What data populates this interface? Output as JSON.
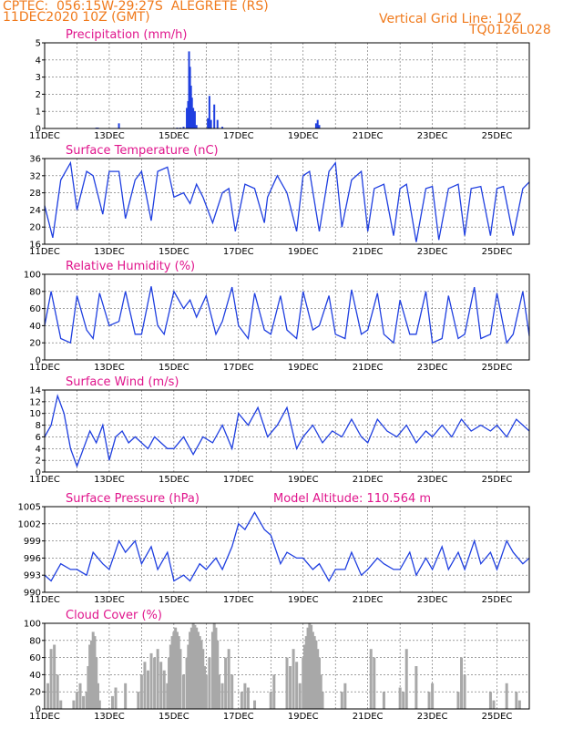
{
  "header": {
    "line1": "CPTEC:  056:15W-29:27S  ALEGRETE (RS)",
    "line2": "11DEC2020 10Z (GMT)",
    "right1": "Vertical Grid Line: 10Z",
    "right2": "TQ0126L028"
  },
  "colors": {
    "series": "#1f3fe0",
    "cloud": "#a8a8a8",
    "title": "#e0158c",
    "header": "#f07a1c"
  },
  "x_tick_labels": [
    "11DEC",
    "13DEC",
    "15DEC",
    "17DEC",
    "19DEC",
    "21DEC",
    "23DEC",
    "25DEC"
  ],
  "chart_data": [
    {
      "type": "bar",
      "title": "Precipitation (mm/h)",
      "ylim": [
        0,
        5
      ],
      "yticks": [
        0,
        1,
        2,
        3,
        4,
        5
      ],
      "x_days": [
        1.6,
        1.65,
        2.3,
        4.1,
        4.2,
        4.3,
        4.4,
        4.42,
        4.44,
        4.47,
        4.5,
        4.53,
        4.56,
        4.6,
        4.65,
        4.7,
        5.05,
        5.1,
        5.15,
        5.25,
        5.35,
        5.5,
        8.4,
        8.45,
        8.5
      ],
      "values": [
        0.05,
        0.05,
        0.3,
        0.05,
        0.05,
        0.1,
        1.2,
        1.0,
        1.6,
        4.5,
        3.6,
        2.5,
        1.8,
        1.2,
        1.0,
        0.2,
        0.6,
        1.9,
        0.5,
        1.4,
        0.5,
        0.1,
        0.3,
        0.5,
        0.2
      ]
    },
    {
      "type": "line",
      "title": "Surface Temperature (nC)",
      "ylim": [
        16,
        36
      ],
      "yticks": [
        16,
        20,
        24,
        28,
        32,
        36
      ],
      "x_days": [
        0,
        0.25,
        0.5,
        0.8,
        1.0,
        1.3,
        1.5,
        1.8,
        2.0,
        2.3,
        2.5,
        2.8,
        3.0,
        3.3,
        3.5,
        3.8,
        4.0,
        4.3,
        4.5,
        4.7,
        4.9,
        5.2,
        5.5,
        5.7,
        5.9,
        6.2,
        6.5,
        6.8,
        6.9,
        7.2,
        7.5,
        7.8,
        8.0,
        8.2,
        8.5,
        8.8,
        9.0,
        9.2,
        9.5,
        9.8,
        10.0,
        10.2,
        10.5,
        10.8,
        11.0,
        11.2,
        11.5,
        11.8,
        12.0,
        12.2,
        12.5,
        12.8,
        13.0,
        13.2,
        13.5,
        13.8,
        14.0,
        14.2,
        14.5,
        14.8,
        15.0
      ],
      "values": [
        25,
        17.5,
        31,
        35,
        24,
        33,
        32,
        23,
        33,
        33,
        22,
        31,
        33,
        21.5,
        33,
        34,
        27,
        28,
        25.5,
        30,
        27,
        21,
        28,
        29,
        19,
        30,
        29,
        21,
        27,
        32,
        28,
        19,
        32,
        33,
        19,
        33,
        35,
        20,
        31,
        33,
        19,
        29,
        30,
        18,
        29,
        30,
        16.5,
        29,
        29.5,
        17,
        29,
        30,
        18,
        29,
        29.5,
        18,
        29,
        29.5,
        18,
        29,
        30.5
      ]
    },
    {
      "type": "line",
      "title": "Relative Humidity (%)",
      "ylim": [
        0,
        100
      ],
      "yticks": [
        0,
        20,
        40,
        60,
        80,
        100
      ],
      "x_days": [
        0,
        0.2,
        0.5,
        0.8,
        1.0,
        1.3,
        1.5,
        1.7,
        2.0,
        2.3,
        2.5,
        2.8,
        3.0,
        3.3,
        3.5,
        3.7,
        4.0,
        4.3,
        4.5,
        4.7,
        5.0,
        5.3,
        5.5,
        5.8,
        6.0,
        6.3,
        6.5,
        6.8,
        7.0,
        7.3,
        7.5,
        7.8,
        8.0,
        8.3,
        8.5,
        8.8,
        9.0,
        9.3,
        9.5,
        9.8,
        10.0,
        10.3,
        10.5,
        10.8,
        11.0,
        11.3,
        11.5,
        11.8,
        12.0,
        12.3,
        12.5,
        12.8,
        13.0,
        13.3,
        13.5,
        13.8,
        14.0,
        14.3,
        14.5,
        14.8,
        15.0
      ],
      "values": [
        40,
        80,
        25,
        20,
        75,
        35,
        25,
        78,
        40,
        45,
        80,
        30,
        30,
        86,
        40,
        30,
        80,
        60,
        70,
        50,
        75,
        30,
        45,
        85,
        40,
        25,
        78,
        35,
        30,
        75,
        35,
        25,
        80,
        35,
        40,
        75,
        30,
        25,
        82,
        30,
        35,
        78,
        30,
        20,
        70,
        30,
        30,
        80,
        20,
        25,
        75,
        25,
        30,
        85,
        25,
        30,
        78,
        20,
        30,
        80,
        28
      ]
    },
    {
      "type": "line",
      "title": "Surface Wind (m/s)",
      "ylim": [
        0,
        14
      ],
      "yticks": [
        0,
        2,
        4,
        6,
        8,
        10,
        12,
        14
      ],
      "x_days": [
        0,
        0.2,
        0.4,
        0.6,
        0.8,
        1.0,
        1.2,
        1.4,
        1.6,
        1.8,
        2.0,
        2.2,
        2.4,
        2.6,
        2.8,
        3.0,
        3.2,
        3.4,
        3.6,
        3.8,
        4.0,
        4.3,
        4.6,
        4.9,
        5.2,
        5.5,
        5.8,
        6.0,
        6.3,
        6.6,
        6.9,
        7.2,
        7.5,
        7.8,
        8.0,
        8.3,
        8.6,
        8.9,
        9.2,
        9.5,
        9.8,
        10.0,
        10.3,
        10.6,
        10.9,
        11.2,
        11.5,
        11.8,
        12.0,
        12.3,
        12.6,
        12.9,
        13.2,
        13.5,
        13.8,
        14.0,
        14.3,
        14.6,
        15.0
      ],
      "values": [
        6,
        8,
        13,
        10,
        4,
        1,
        4,
        7,
        5,
        8,
        2,
        6,
        7,
        5,
        6,
        5,
        4,
        6,
        5,
        4,
        4,
        6,
        3,
        6,
        5,
        8,
        4,
        10,
        8,
        11,
        6,
        8,
        11,
        4,
        6,
        8,
        5,
        7,
        6,
        9,
        6,
        5,
        9,
        7,
        6,
        8,
        5,
        7,
        6,
        8,
        6,
        9,
        7,
        8,
        7,
        8,
        6,
        9,
        7
      ]
    },
    {
      "type": "line",
      "title": "Surface Pressure (hPa)",
      "annotation": "Model Altitude: 110.564 m",
      "ylim": [
        990,
        1005
      ],
      "yticks": [
        990,
        993,
        996,
        999,
        1002,
        1005
      ],
      "x_days": [
        0,
        0.2,
        0.5,
        0.8,
        1.0,
        1.3,
        1.5,
        1.8,
        2.0,
        2.3,
        2.5,
        2.8,
        3.0,
        3.3,
        3.5,
        3.8,
        4.0,
        4.3,
        4.5,
        4.8,
        5.0,
        5.3,
        5.5,
        5.8,
        6.0,
        6.2,
        6.5,
        6.8,
        7.0,
        7.3,
        7.5,
        7.8,
        8.0,
        8.3,
        8.5,
        8.8,
        9.0,
        9.3,
        9.5,
        9.8,
        10.0,
        10.3,
        10.5,
        10.8,
        11.0,
        11.3,
        11.5,
        11.8,
        12.0,
        12.3,
        12.5,
        12.8,
        13.0,
        13.3,
        13.5,
        13.8,
        14.0,
        14.3,
        14.5,
        14.8,
        15.0
      ],
      "values": [
        993,
        992,
        995,
        994,
        994,
        993,
        997,
        995,
        994,
        999,
        997,
        999,
        995,
        998,
        994,
        997,
        992,
        993,
        992,
        995,
        994,
        996,
        994,
        998,
        1002,
        1001,
        1004,
        1001,
        1000,
        995,
        997,
        996,
        996,
        994,
        995,
        992,
        994,
        994,
        997,
        993,
        994,
        996,
        995,
        994,
        994,
        997,
        993,
        996,
        994,
        998,
        994,
        997,
        994,
        999,
        995,
        997,
        994,
        999,
        997,
        995,
        996
      ]
    },
    {
      "type": "area",
      "title": "Cloud Cover (%)",
      "ylim": [
        0,
        100
      ],
      "yticks": [
        0,
        20,
        40,
        60,
        80,
        100
      ],
      "x_days": [
        0.1,
        0.2,
        0.3,
        0.4,
        0.5,
        0.9,
        1.0,
        1.1,
        1.2,
        1.3,
        1.35,
        1.4,
        1.45,
        1.5,
        1.55,
        1.6,
        1.65,
        1.7,
        2.1,
        2.2,
        2.5,
        2.9,
        3.0,
        3.1,
        3.2,
        3.3,
        3.4,
        3.5,
        3.6,
        3.7,
        3.8,
        3.85,
        3.9,
        3.95,
        4.0,
        4.05,
        4.1,
        4.15,
        4.2,
        4.3,
        4.4,
        4.45,
        4.5,
        4.55,
        4.6,
        4.65,
        4.7,
        4.75,
        4.8,
        4.85,
        4.9,
        4.95,
        5.0,
        5.1,
        5.2,
        5.25,
        5.3,
        5.35,
        5.4,
        5.5,
        5.6,
        5.7,
        5.8,
        6.1,
        6.2,
        6.3,
        6.5,
        7.0,
        7.1,
        7.5,
        7.6,
        7.7,
        7.8,
        7.9,
        8.0,
        8.05,
        8.1,
        8.15,
        8.2,
        8.25,
        8.3,
        8.35,
        8.4,
        8.45,
        8.5,
        8.55,
        8.6,
        9.2,
        9.3,
        10.1,
        10.2,
        10.5,
        11.0,
        11.1,
        11.2,
        11.5,
        11.9,
        12.0,
        12.8,
        12.9,
        13.0,
        13.8,
        13.9,
        14.3,
        14.6,
        14.7
      ],
      "values": [
        30,
        70,
        75,
        40,
        10,
        10,
        20,
        30,
        15,
        20,
        50,
        75,
        80,
        90,
        85,
        60,
        30,
        10,
        15,
        25,
        30,
        20,
        40,
        55,
        45,
        65,
        60,
        70,
        55,
        45,
        30,
        60,
        75,
        85,
        90,
        95,
        90,
        85,
        70,
        40,
        60,
        75,
        90,
        95,
        100,
        98,
        95,
        90,
        85,
        80,
        70,
        50,
        40,
        60,
        90,
        100,
        95,
        80,
        40,
        30,
        60,
        70,
        40,
        20,
        30,
        25,
        10,
        20,
        40,
        60,
        50,
        70,
        55,
        30,
        60,
        75,
        85,
        95,
        100,
        98,
        90,
        85,
        80,
        70,
        60,
        40,
        20,
        20,
        30,
        70,
        60,
        20,
        25,
        20,
        70,
        50,
        20,
        30,
        20,
        60,
        40,
        20,
        10,
        30,
        20,
        10
      ]
    }
  ]
}
